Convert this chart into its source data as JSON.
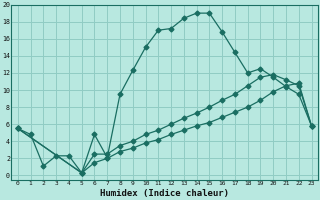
{
  "xlabel": "Humidex (Indice chaleur)",
  "bg_color": "#b8e8e0",
  "grid_color": "#90ccc4",
  "line_color": "#1a6e62",
  "xlim": [
    -0.5,
    23.5
  ],
  "ylim": [
    -0.5,
    20
  ],
  "xticks": [
    0,
    1,
    2,
    3,
    4,
    5,
    6,
    7,
    8,
    9,
    10,
    11,
    12,
    13,
    14,
    15,
    16,
    17,
    18,
    19,
    20,
    21,
    22,
    23
  ],
  "yticks": [
    0,
    2,
    4,
    6,
    8,
    10,
    12,
    14,
    16,
    18,
    20
  ],
  "line1_x": [
    0,
    1,
    2,
    3,
    4,
    5,
    6,
    7,
    8,
    9,
    10,
    11,
    12,
    13,
    14,
    15,
    16,
    17,
    18,
    19,
    20,
    21,
    22,
    23
  ],
  "line1_y": [
    5.5,
    4.8,
    1.1,
    2.3,
    2.3,
    0.3,
    4.8,
    2.1,
    9.5,
    12.3,
    15.0,
    17.0,
    17.2,
    18.4,
    19.0,
    19.0,
    16.8,
    14.4,
    12.0,
    12.5,
    11.5,
    10.4,
    9.5,
    5.8
  ],
  "line2_x": [
    0,
    5,
    6,
    7,
    8,
    9,
    10,
    11,
    12,
    13,
    14,
    15,
    16,
    17,
    18,
    19,
    20,
    21,
    22,
    23
  ],
  "line2_y": [
    5.5,
    0.3,
    1.5,
    2.0,
    2.8,
    3.2,
    3.8,
    4.2,
    4.8,
    5.3,
    5.8,
    6.2,
    6.8,
    7.4,
    8.0,
    8.8,
    9.8,
    10.5,
    10.8,
    5.8
  ],
  "line3_x": [
    0,
    5,
    6,
    7,
    8,
    9,
    10,
    11,
    12,
    13,
    14,
    15,
    16,
    17,
    18,
    19,
    20,
    21,
    22,
    23
  ],
  "line3_y": [
    5.5,
    0.3,
    2.5,
    2.5,
    3.5,
    4.0,
    4.8,
    5.3,
    6.0,
    6.7,
    7.3,
    8.0,
    8.8,
    9.5,
    10.5,
    11.5,
    11.8,
    11.2,
    10.5,
    5.8
  ]
}
